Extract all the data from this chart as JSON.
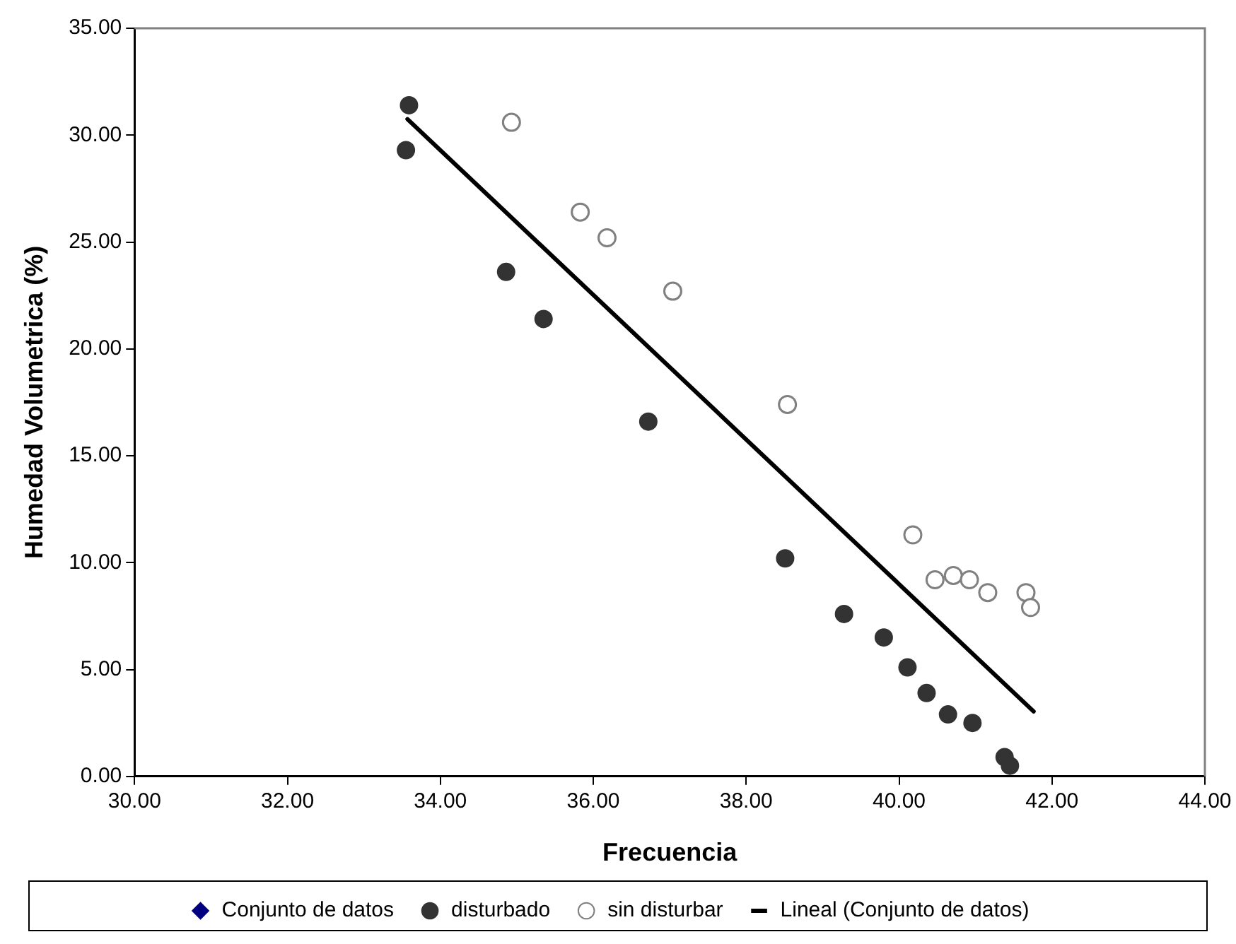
{
  "chart_data": {
    "type": "scatter",
    "xlabel": "Frecuencia",
    "ylabel": "Humedad Volumetrica (%)",
    "xlim": [
      30,
      44
    ],
    "ylim": [
      0,
      35
    ],
    "xticks": [
      {
        "value": 30,
        "label": "30.00"
      },
      {
        "value": 32,
        "label": "32.00"
      },
      {
        "value": 34,
        "label": "34.00"
      },
      {
        "value": 36,
        "label": "36.00"
      },
      {
        "value": 38,
        "label": "38.00"
      },
      {
        "value": 40,
        "label": "40.00"
      },
      {
        "value": 42,
        "label": "42.00"
      },
      {
        "value": 44,
        "label": "44.00"
      }
    ],
    "yticks": [
      {
        "value": 0,
        "label": "0.00"
      },
      {
        "value": 5,
        "label": "5.00"
      },
      {
        "value": 10,
        "label": "10.00"
      },
      {
        "value": 15,
        "label": "15.00"
      },
      {
        "value": 20,
        "label": "20.00"
      },
      {
        "value": 25,
        "label": "25.00"
      },
      {
        "value": 30,
        "label": "30.00"
      },
      {
        "value": 35,
        "label": "35.00"
      }
    ],
    "legend": "bottom",
    "grid": false,
    "series": [
      {
        "name": "Conjunto de datos",
        "type": "scatter",
        "marker": "diamond",
        "color": "#000080"
      },
      {
        "name": "disturbado",
        "type": "scatter",
        "marker": "circle",
        "color": "#333333",
        "x": [
          33.59,
          33.55,
          34.86,
          35.35,
          36.72,
          38.51,
          39.28,
          39.8,
          40.11,
          40.36,
          40.64,
          40.96,
          41.38,
          41.45
        ],
        "values": [
          31.4,
          29.3,
          23.6,
          21.4,
          16.6,
          10.2,
          7.6,
          6.5,
          5.1,
          3.9,
          2.9,
          2.5,
          0.9,
          0.5
        ]
      },
      {
        "name": "sin disturbar",
        "type": "scatter",
        "marker": "circle",
        "color": "#ffffff",
        "x": [
          34.93,
          35.83,
          36.18,
          37.04,
          38.54,
          40.18,
          40.47,
          40.71,
          40.92,
          41.16,
          41.66,
          41.72
        ],
        "values": [
          30.6,
          26.4,
          25.2,
          22.7,
          17.4,
          11.3,
          9.2,
          9.4,
          9.2,
          8.6,
          8.6,
          7.9
        ]
      },
      {
        "name": "Lineal (Conjunto de datos)",
        "type": "line",
        "marker": "none",
        "line_style": "solid",
        "color": "#000000",
        "x": [
          33.57,
          41.76
        ],
        "values": [
          30.75,
          3.04
        ]
      }
    ]
  }
}
